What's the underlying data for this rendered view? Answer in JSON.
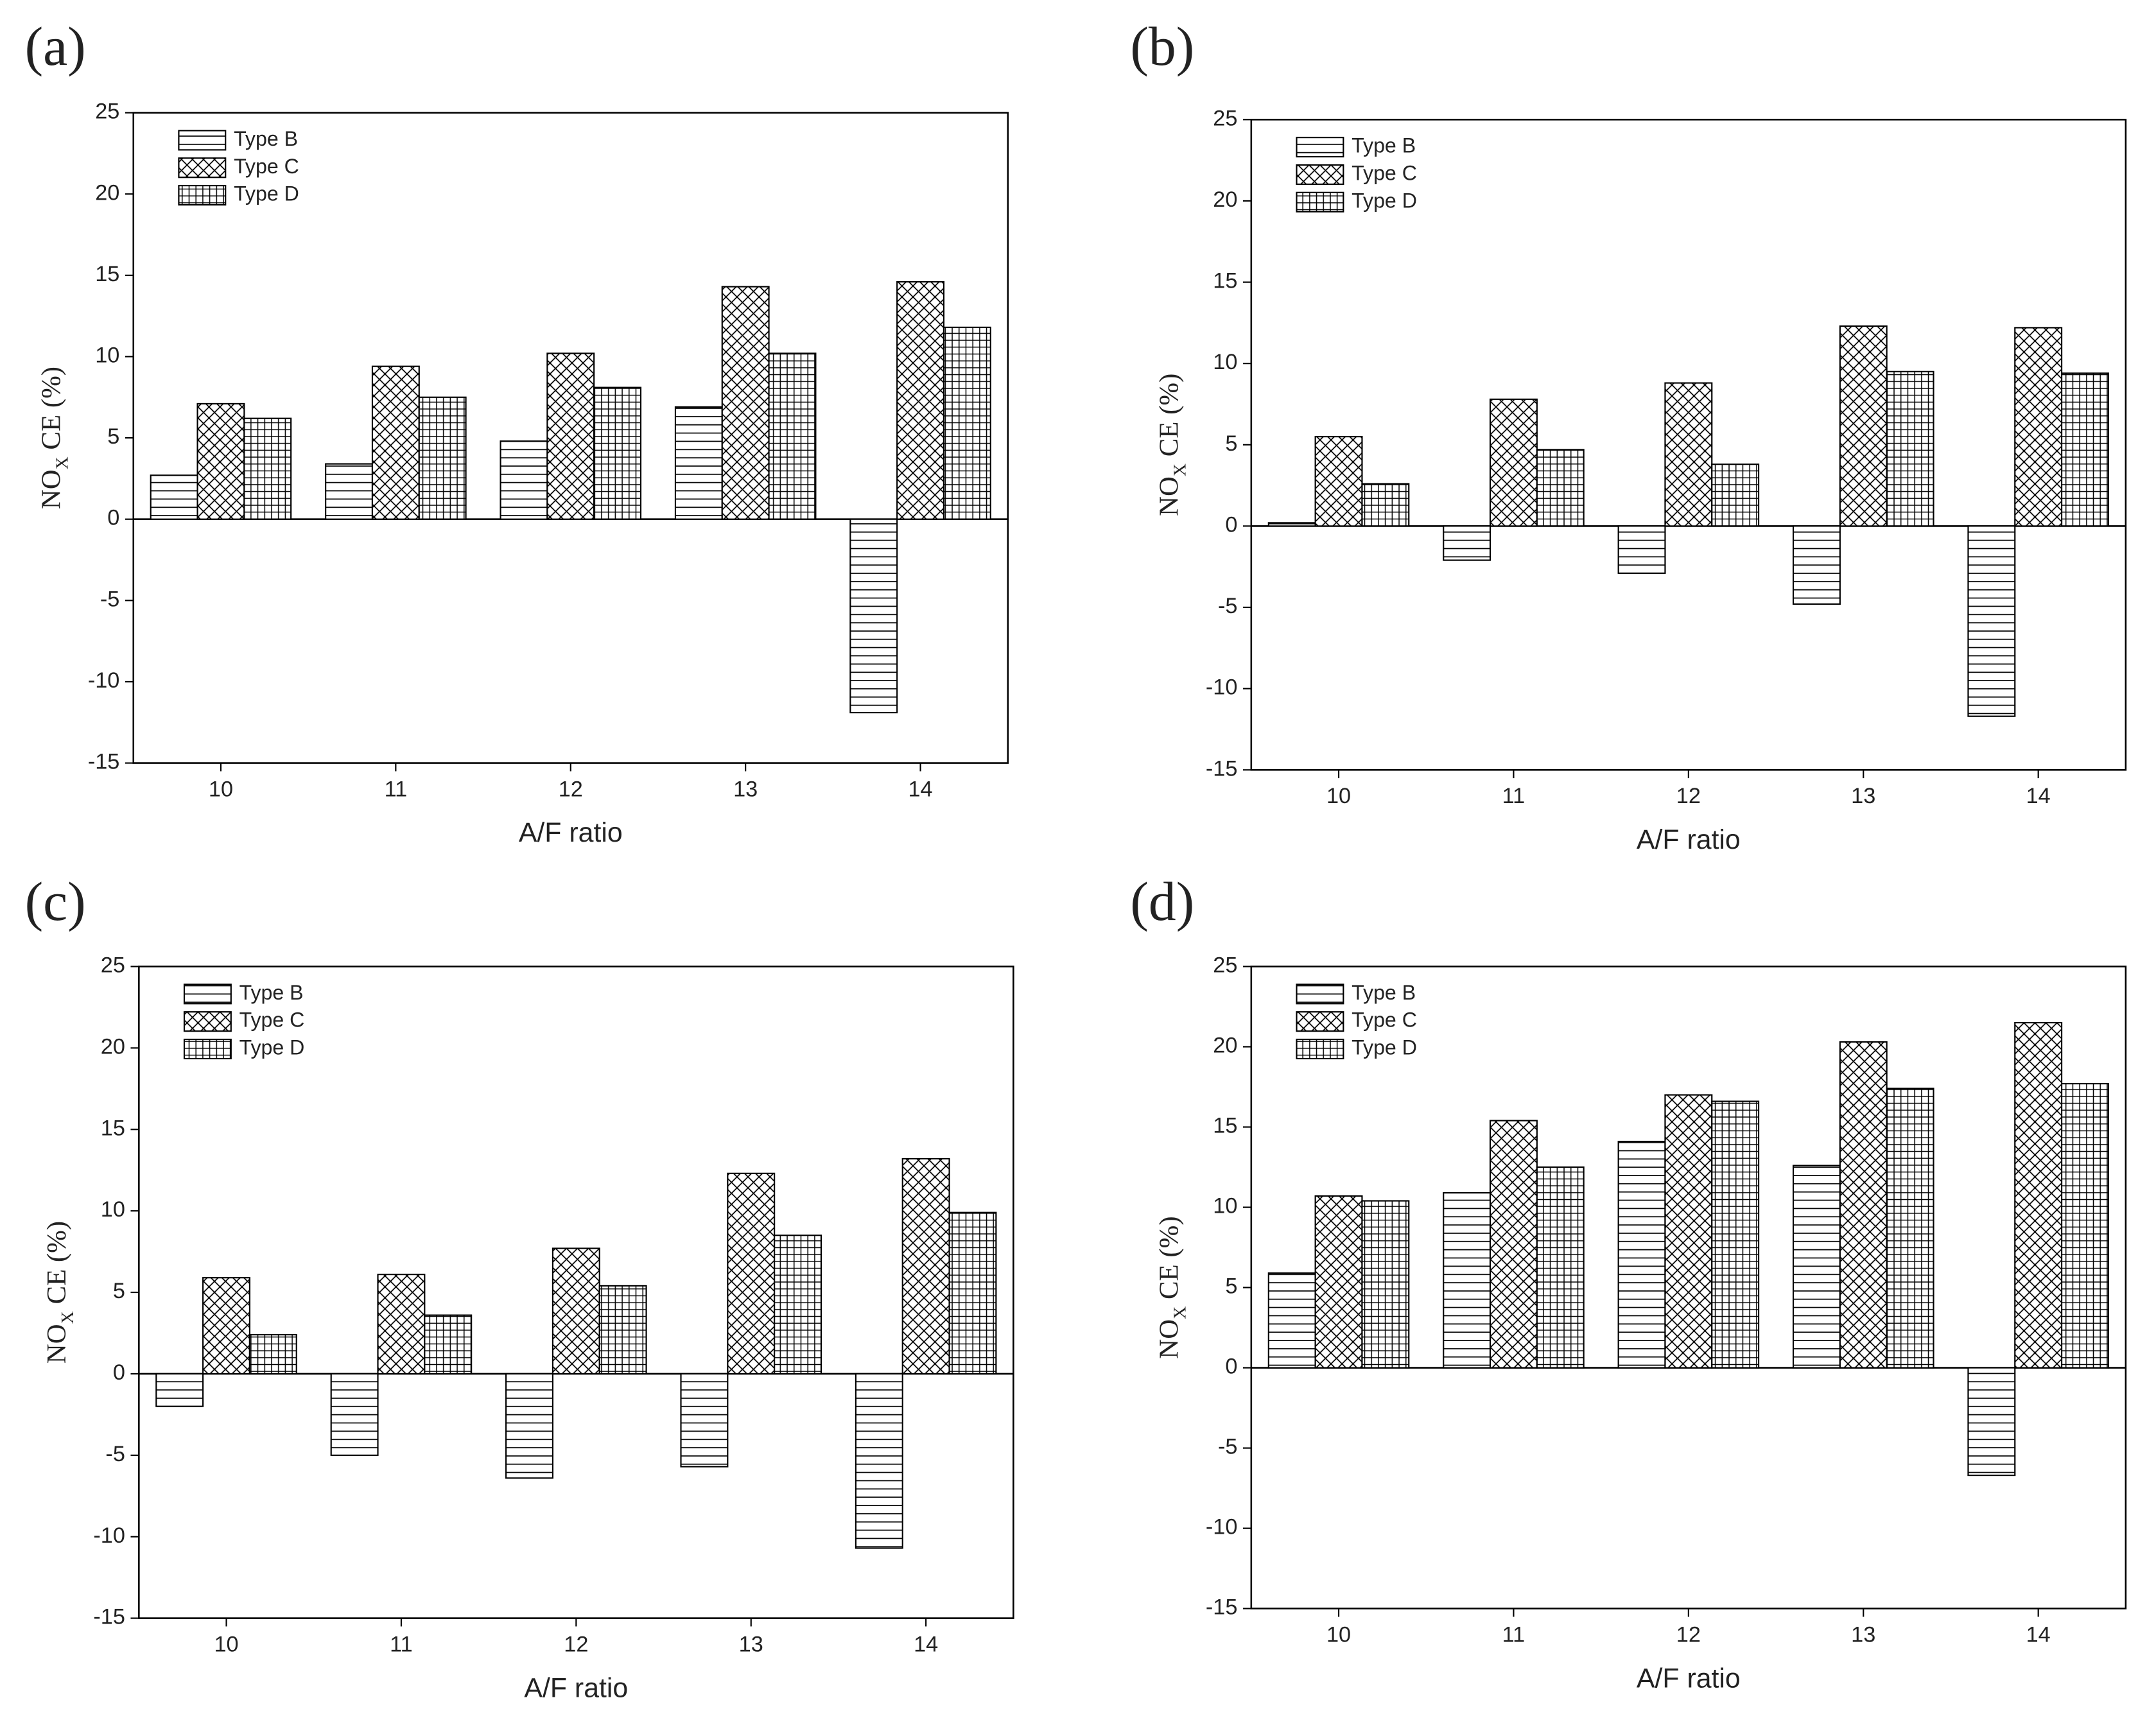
{
  "chart_data": [
    {
      "type": "bar",
      "panel_label": "(a)",
      "xlabel": "A/F ratio",
      "ylabel": [
        "NO",
        "X",
        " CE (%)"
      ],
      "categories": [
        "10",
        "11",
        "12",
        "13",
        "14"
      ],
      "ylim": [
        -15,
        25
      ],
      "yticks": [
        -15,
        -10,
        -5,
        0,
        5,
        10,
        15,
        20,
        25
      ],
      "legend": "upper left",
      "series": [
        {
          "name": "Type B",
          "color": "#000000",
          "pattern": "hlines",
          "values": [
            2.7,
            3.4,
            4.8,
            6.9,
            -11.9
          ]
        },
        {
          "name": "Type C",
          "color": "#000000",
          "pattern": "crosshatch",
          "values": [
            7.1,
            9.4,
            10.2,
            14.3,
            14.6
          ]
        },
        {
          "name": "Type D",
          "color": "#000000",
          "pattern": "grid",
          "values": [
            6.2,
            7.5,
            8.1,
            10.2,
            11.8
          ]
        }
      ]
    },
    {
      "type": "bar",
      "panel_label": "(b)",
      "xlabel": "A/F ratio",
      "ylabel": [
        "NO",
        "X",
        " CE (%)"
      ],
      "categories": [
        "10",
        "11",
        "12",
        "13",
        "14"
      ],
      "ylim": [
        -15,
        25
      ],
      "yticks": [
        -15,
        -10,
        -5,
        0,
        5,
        10,
        15,
        20,
        25
      ],
      "legend": "upper left",
      "series": [
        {
          "name": "Type B",
          "color": "#000000",
          "pattern": "hlines",
          "values": [
            0.2,
            -2.1,
            -2.9,
            -4.8,
            -11.7
          ]
        },
        {
          "name": "Type C",
          "color": "#000000",
          "pattern": "crosshatch",
          "values": [
            5.5,
            7.8,
            8.8,
            12.3,
            12.2
          ]
        },
        {
          "name": "Type D",
          "color": "#000000",
          "pattern": "grid",
          "values": [
            2.6,
            4.7,
            3.8,
            9.5,
            9.4
          ]
        }
      ]
    },
    {
      "type": "bar",
      "panel_label": "(c)",
      "xlabel": "A/F ratio",
      "ylabel": [
        "NO",
        "X",
        " CE (%)"
      ],
      "categories": [
        "10",
        "11",
        "12",
        "13",
        "14"
      ],
      "ylim": [
        -15,
        25
      ],
      "yticks": [
        -15,
        -10,
        -5,
        0,
        5,
        10,
        15,
        20,
        25
      ],
      "legend": "upper left",
      "series": [
        {
          "name": "Type B",
          "color": "#000000",
          "pattern": "hlines",
          "values": [
            -2.0,
            -5.0,
            -6.4,
            -5.7,
            -10.7
          ]
        },
        {
          "name": "Type C",
          "color": "#000000",
          "pattern": "crosshatch",
          "values": [
            5.9,
            6.1,
            7.7,
            12.3,
            13.2
          ]
        },
        {
          "name": "Type D",
          "color": "#000000",
          "pattern": "grid",
          "values": [
            2.4,
            3.6,
            5.4,
            8.5,
            9.9
          ]
        }
      ]
    },
    {
      "type": "bar",
      "panel_label": "(d)",
      "xlabel": "A/F ratio",
      "ylabel": [
        "NO",
        "X",
        " CE (%)"
      ],
      "categories": [
        "10",
        "11",
        "12",
        "13",
        "14"
      ],
      "ylim": [
        -15,
        25
      ],
      "yticks": [
        -15,
        -10,
        -5,
        0,
        5,
        10,
        15,
        20,
        25
      ],
      "legend": "upper left",
      "series": [
        {
          "name": "Type B",
          "color": "#000000",
          "pattern": "hlines",
          "values": [
            5.9,
            10.9,
            14.1,
            12.6,
            -6.7
          ]
        },
        {
          "name": "Type C",
          "color": "#000000",
          "pattern": "crosshatch",
          "values": [
            10.7,
            15.4,
            17.0,
            20.3,
            21.5
          ]
        },
        {
          "name": "Type D",
          "color": "#000000",
          "pattern": "grid",
          "values": [
            10.4,
            12.5,
            16.6,
            17.4,
            17.7
          ]
        }
      ]
    }
  ]
}
